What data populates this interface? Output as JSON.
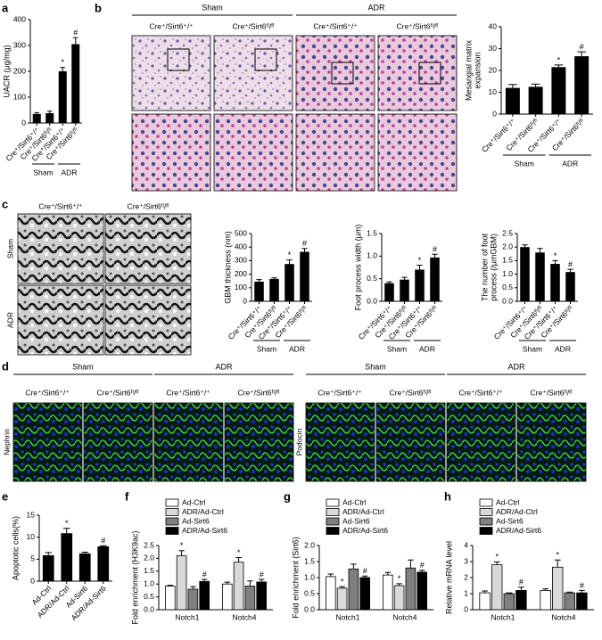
{
  "panel_labels": [
    "a",
    "b",
    "c",
    "d",
    "e",
    "f",
    "g",
    "h"
  ],
  "images": {
    "b": {
      "groups": [
        "Sham",
        "ADR"
      ],
      "columns": [
        "Cre⁺/Sirt6⁺/⁺",
        "Cre⁺/Sirt6ᶠˡ/ᶠˡ",
        "Cre⁺/Sirt6⁺/⁺",
        "Cre⁺/Sirt6ᶠˡ/ᶠˡ"
      ]
    },
    "c": {
      "columns": [
        "Cre⁺/Sirt6⁺/⁺",
        "Cre⁺/Sirt6ᶠˡ/ᶠˡ"
      ],
      "rows": [
        "Sham",
        "ADR"
      ]
    },
    "d": {
      "groups": [
        "Sham",
        "ADR",
        "Sham",
        "ADR"
      ],
      "columns": [
        "Cre⁺/Sirt6⁺/⁺",
        "Cre⁺/Sirt6ᶠˡ/ᶠˡ",
        "Cre⁺/Sirt6⁺/⁺",
        "Cre⁺/Sirt6ᶠˡ/ᶠˡ",
        "Cre⁺/Sirt6⁺/⁺",
        "Cre⁺/Sirt6ᶠˡ/ᶠˡ",
        "Cre⁺/Sirt6⁺/⁺",
        "Cre⁺/Sirt6ᶠˡ/ᶠˡ"
      ],
      "row_labels": [
        "Nephrin",
        "Podocin"
      ]
    }
  },
  "chart_data": [
    {
      "type": "bar",
      "ylabel": "UACR (μg/mg)",
      "categories": [
        "Cre⁺/Sirt6⁺/⁺",
        "Cre⁺/Sirt6ᶠˡ/ᶠˡ",
        "Cre⁺/Sirt6⁺/⁺",
        "Cre⁺/Sirt6ᶠˡ/ᶠˡ"
      ],
      "values": [
        35,
        38,
        200,
        305
      ],
      "errors": [
        5,
        8,
        15,
        25
      ],
      "sig_labels": [
        null,
        null,
        "*",
        "#"
      ],
      "group_labels": [
        "Sham",
        "ADR"
      ],
      "color": "#000000",
      "ylim": [
        0,
        400
      ],
      "yticks": [
        0,
        100,
        200,
        300,
        400
      ]
    },
    {
      "type": "bar",
      "ylabel": [
        "Mesangial matrix",
        "expansion"
      ],
      "categories": [
        "Cre⁺/Sirt6⁺/⁺",
        "Cre⁺/Sirt6ᶠˡ/ᶠˡ",
        "Cre⁺/Sirt6⁺/⁺",
        "Cre⁺/Sirt6ᶠˡ/ᶠˡ"
      ],
      "values": [
        12,
        12.5,
        21.5,
        26.5
      ],
      "errors": [
        1.5,
        1.2,
        1,
        2
      ],
      "sig_labels": [
        null,
        null,
        "*",
        "#"
      ],
      "group_labels": [
        "Sham",
        "ADR"
      ],
      "color": "#000000",
      "ylim": [
        0,
        40
      ],
      "yticks": [
        0,
        10,
        20,
        30,
        40
      ]
    },
    {
      "type": "bar",
      "ylabel": "GBM thickness (nm)",
      "categories": [
        "Cre⁺/Sirt6⁺/⁺",
        "Cre⁺/Sirt6ᶠˡ/ᶠˡ",
        "Cre⁺/Sirt6⁺/⁺",
        "Cre⁺/Sirt6ᶠˡ/ᶠˡ"
      ],
      "values": [
        145,
        165,
        275,
        365
      ],
      "errors": [
        15,
        8,
        30,
        25
      ],
      "sig_labels": [
        null,
        null,
        "*",
        "#"
      ],
      "group_labels": [
        "Sham",
        "ADR"
      ],
      "color": "#000000",
      "ylim": [
        0,
        500
      ],
      "yticks": [
        0,
        100,
        200,
        300,
        400,
        500
      ]
    },
    {
      "type": "bar",
      "ylabel": "Foot process width (μm)",
      "categories": [
        "Cre⁺/Sirt6⁺/⁺",
        "Cre⁺/Sirt6ᶠˡ/ᶠˡ",
        "Cre⁺/Sirt6⁺/⁺",
        "Cre⁺/Sirt6ᶠˡ/ᶠˡ"
      ],
      "values": [
        0.4,
        0.48,
        0.7,
        0.97
      ],
      "errors": [
        0.03,
        0.05,
        0.1,
        0.07
      ],
      "sig_labels": [
        null,
        null,
        "*",
        "#"
      ],
      "group_labels": [
        "Sham",
        "ADR"
      ],
      "color": "#000000",
      "ylim": [
        0,
        1.5
      ],
      "yticks": [
        {
          "value": 0,
          "label": "0.0"
        },
        0.5,
        {
          "value": 1,
          "label": "1.0"
        },
        1.5
      ]
    },
    {
      "type": "bar",
      "ylabel": [
        "The number of foot",
        "process (/μmGBM)"
      ],
      "categories": [
        "Cre⁺/Sirt6⁺/⁺",
        "Cre⁺/Sirt6ᶠˡ/ᶠˡ",
        "Cre⁺/Sirt6⁺/⁺",
        "Cre⁺/Sirt6ᶠˡ/ᶠˡ"
      ],
      "values": [
        2.0,
        1.8,
        1.38,
        1.08
      ],
      "errors": [
        0.08,
        0.15,
        0.12,
        0.1
      ],
      "sig_labels": [
        null,
        null,
        "*",
        "#"
      ],
      "group_labels": [
        "Sham",
        "ADR"
      ],
      "color": "#000000",
      "ylim": [
        0,
        2.5
      ],
      "yticks": [
        {
          "value": 0,
          "label": "0.0"
        },
        0.5,
        {
          "value": 1,
          "label": "1.0"
        },
        1.5,
        {
          "value": 2,
          "label": "2.0"
        },
        2.5
      ]
    },
    {
      "type": "bar",
      "ylabel": "Apoptotic cells(%)",
      "categories": [
        "Ad-Ctrl",
        "ADR/Ad-Ctrl",
        "Ad-Sirt6",
        "ADR/Ad-Sirt6"
      ],
      "values": [
        5.9,
        10.9,
        6.3,
        7.9
      ],
      "errors": [
        0.6,
        1.1,
        0.3,
        0.15
      ],
      "sig_labels": [
        null,
        "*",
        null,
        "#"
      ],
      "color": "#000000",
      "ylim": [
        0,
        15
      ],
      "yticks": [
        0,
        5,
        10,
        15
      ]
    },
    {
      "type": "grouped_bar",
      "ylabel": "Fold enrichment (H3K9ac)",
      "categories": [
        "Notch1",
        "Notch4"
      ],
      "series": [
        {
          "name": "Ad-Ctrl",
          "color": "#ffffff",
          "values": [
            0.92,
            1.0
          ],
          "errors": [
            0.03,
            0.07
          ],
          "sig_labels": [
            null,
            null
          ]
        },
        {
          "name": "ADR/Ad-Ctrl",
          "color": "#d9d9d9",
          "values": [
            2.1,
            1.85
          ],
          "errors": [
            0.2,
            0.18
          ],
          "sig_labels": [
            "*",
            "*"
          ]
        },
        {
          "name": "Ad-Sirt6",
          "color": "#7f7f7f",
          "values": [
            0.8,
            0.92
          ],
          "errors": [
            0.1,
            0.2
          ],
          "sig_labels": [
            null,
            null
          ]
        },
        {
          "name": "ADR/Ad-Sirt6",
          "color": "#000000",
          "values": [
            1.1,
            1.08
          ],
          "errors": [
            0.08,
            0.1
          ],
          "sig_labels": [
            "#",
            "#"
          ]
        }
      ],
      "ylim": [
        0,
        2.5
      ],
      "yticks": [
        {
          "value": 0,
          "label": "0.0"
        },
        0.5,
        {
          "value": 1,
          "label": "1.0"
        },
        1.5,
        {
          "value": 2,
          "label": "2.0"
        },
        2.5
      ]
    },
    {
      "type": "grouped_bar",
      "ylabel": "Fold enrichment (Sirt6)",
      "categories": [
        "Notch1",
        "Notch4"
      ],
      "series": [
        {
          "name": "Ad-Ctrl",
          "color": "#ffffff",
          "values": [
            1.03,
            1.08
          ],
          "errors": [
            0.08,
            0.08
          ],
          "sig_labels": [
            null,
            null
          ]
        },
        {
          "name": "ADR/Ad-Ctrl",
          "color": "#d9d9d9",
          "values": [
            0.67,
            0.75
          ],
          "errors": [
            0.05,
            0.06
          ],
          "sig_labels": [
            "*",
            "*"
          ]
        },
        {
          "name": "Ad-Sirt6",
          "color": "#7f7f7f",
          "values": [
            1.27,
            1.3
          ],
          "errors": [
            0.15,
            0.25
          ],
          "sig_labels": [
            null,
            null
          ]
        },
        {
          "name": "ADR/Ad-Sirt6",
          "color": "#000000",
          "values": [
            1.0,
            1.17
          ],
          "errors": [
            0.05,
            0.06
          ],
          "sig_labels": [
            "#",
            "#"
          ]
        }
      ],
      "ylim": [
        0,
        2
      ],
      "yticks": [
        {
          "value": 0,
          "label": "0.0"
        },
        0.5,
        {
          "value": 1,
          "label": "1.0"
        },
        1.5,
        {
          "value": 2,
          "label": "2.0"
        }
      ]
    },
    {
      "type": "grouped_bar",
      "ylabel": "Relative mRNA level",
      "categories": [
        "Notch1",
        "Notch4"
      ],
      "series": [
        {
          "name": "Ad-Ctrl",
          "color": "#ffffff",
          "values": [
            1.05,
            1.2
          ],
          "errors": [
            0.12,
            0.1
          ],
          "sig_labels": [
            null,
            null
          ]
        },
        {
          "name": "ADR/Ad-Ctrl",
          "color": "#d9d9d9",
          "values": [
            2.8,
            2.65
          ],
          "errors": [
            0.18,
            0.45
          ],
          "sig_labels": [
            "*",
            "*"
          ]
        },
        {
          "name": "Ad-Sirt6",
          "color": "#7f7f7f",
          "values": [
            1.0,
            1.05
          ],
          "errors": [
            0.05,
            0.05
          ],
          "sig_labels": [
            null,
            null
          ]
        },
        {
          "name": "ADR/Ad-Sirt6",
          "color": "#000000",
          "values": [
            1.2,
            1.05
          ],
          "errors": [
            0.2,
            0.15
          ],
          "sig_labels": [
            "#",
            "#"
          ]
        }
      ],
      "ylim": [
        0,
        4
      ],
      "yticks": [
        0,
        1,
        2,
        3,
        4
      ]
    }
  ]
}
